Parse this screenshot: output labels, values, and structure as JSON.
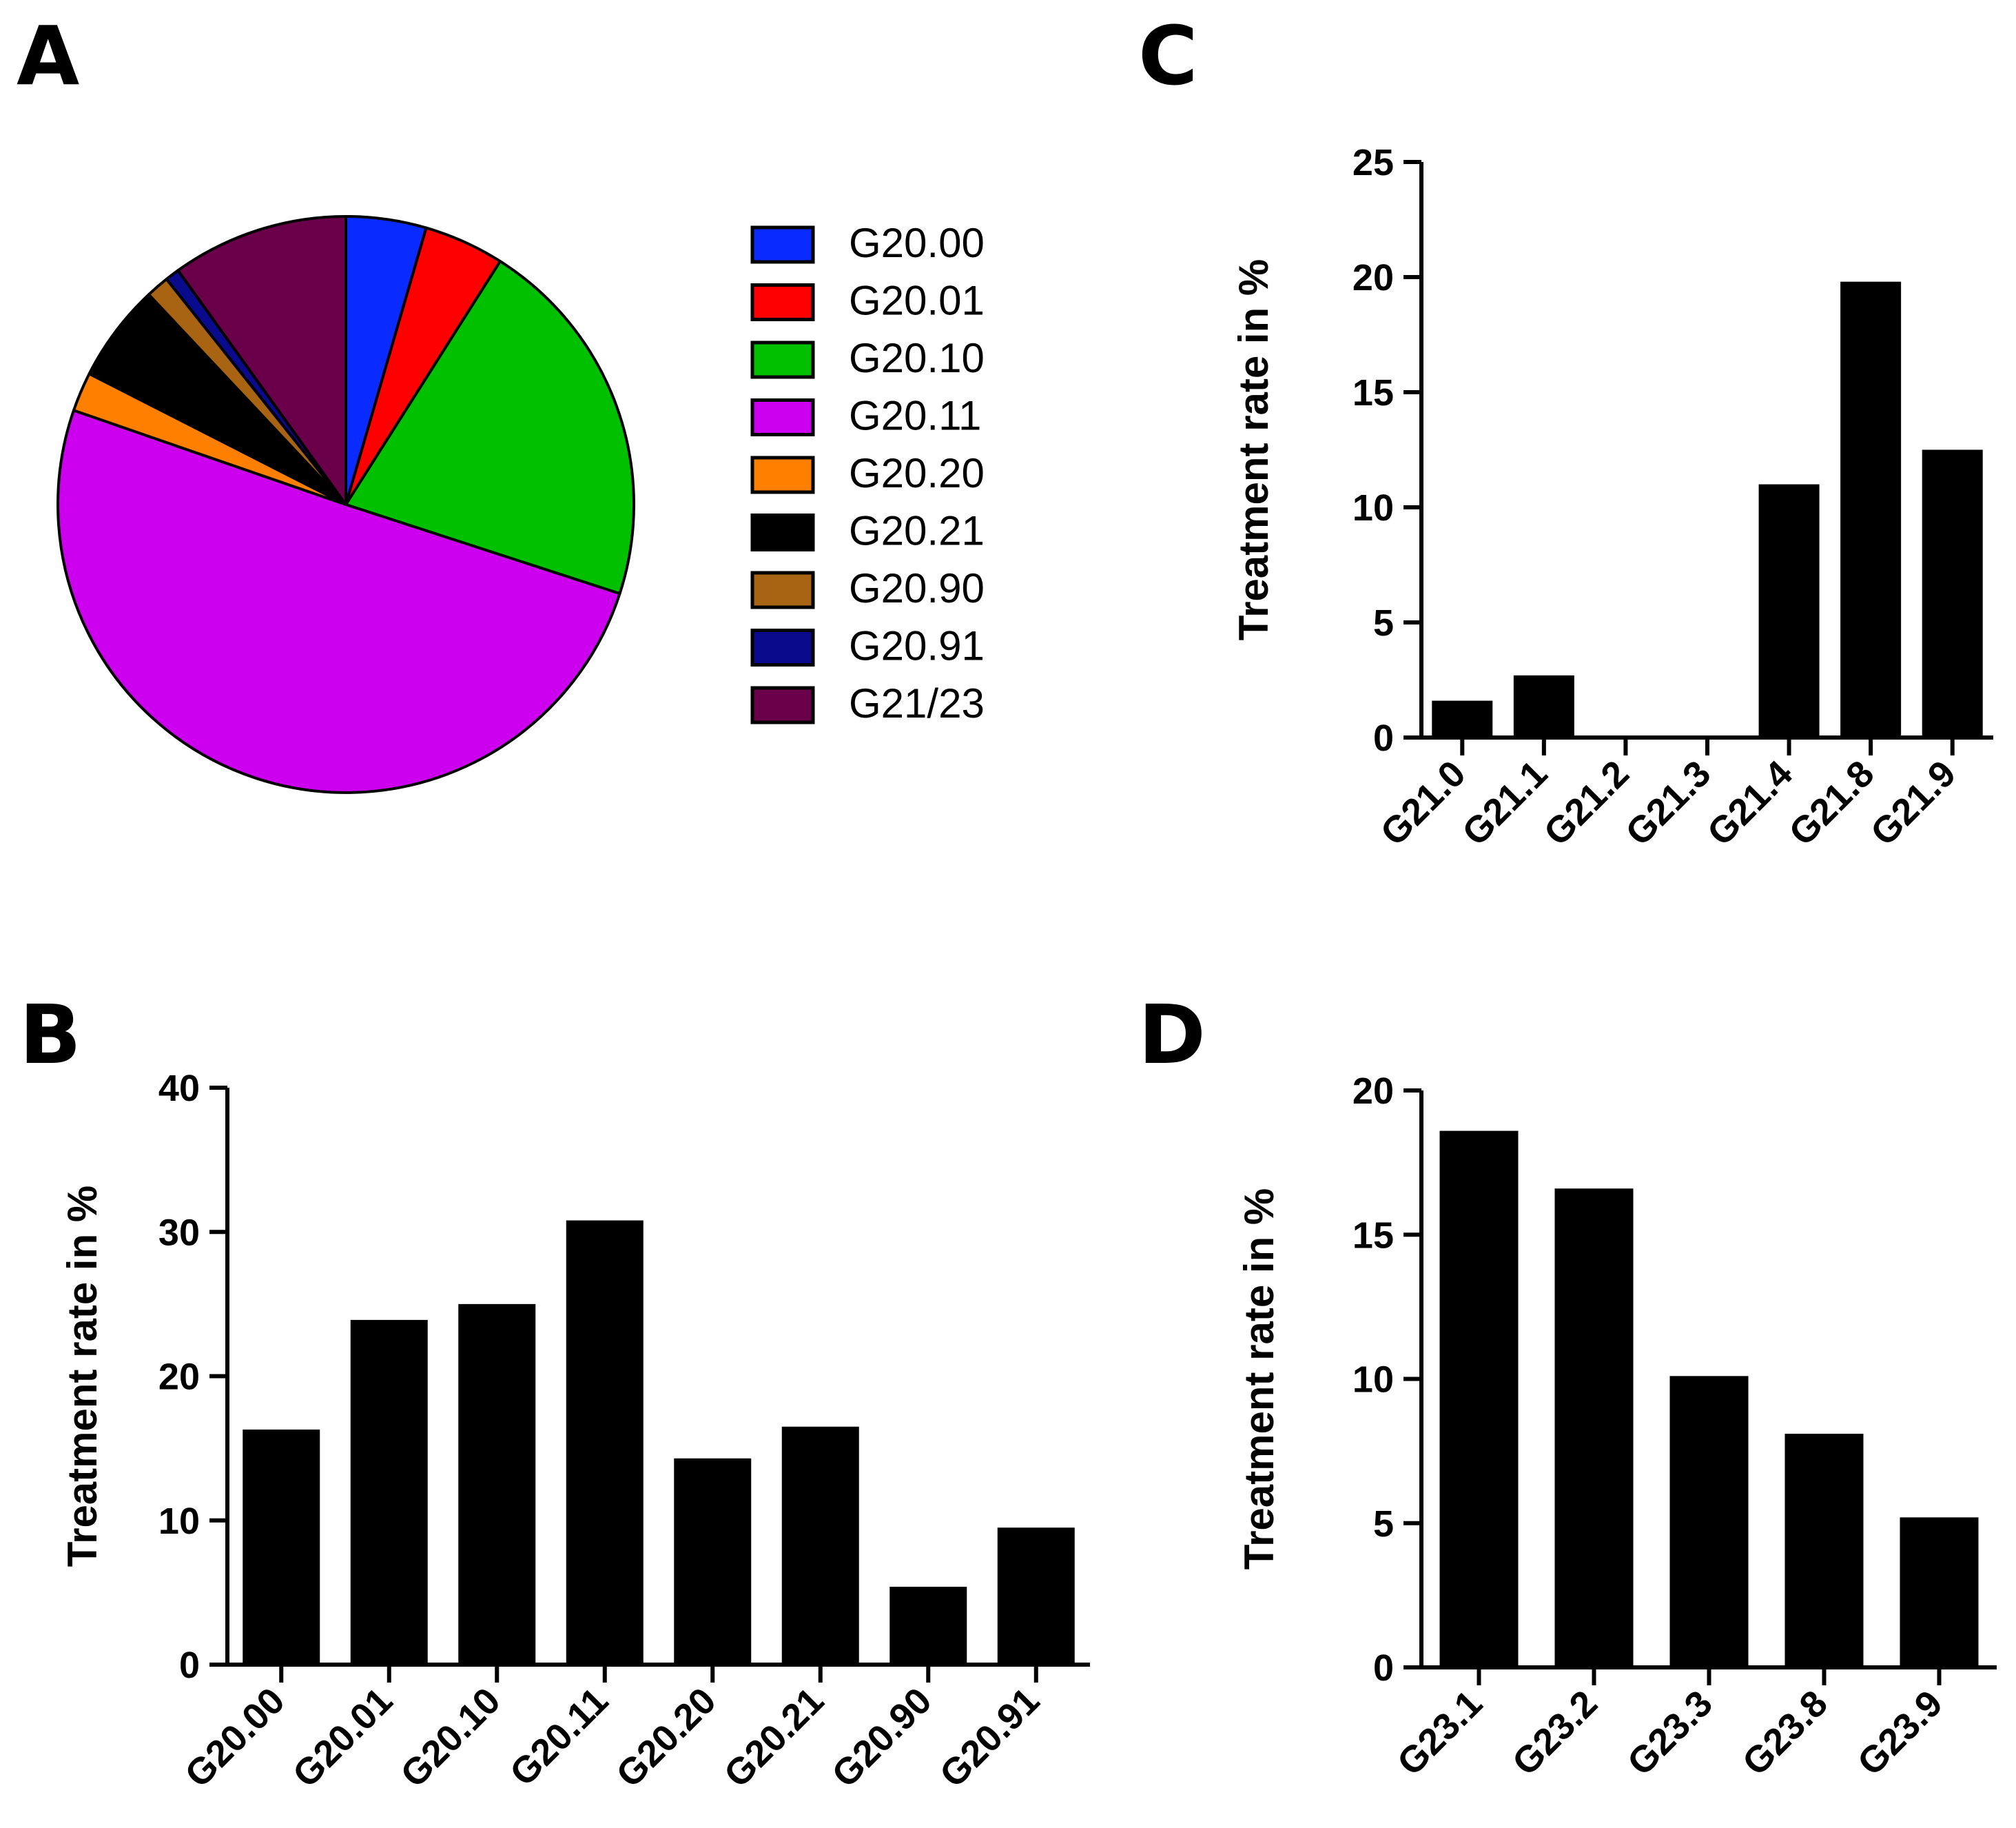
{
  "chart_data": [
    {
      "panel": "A",
      "type": "pie",
      "categories": [
        "G20.00",
        "G20.01",
        "G20.10",
        "G20.11",
        "G20.20",
        "G20.21",
        "G20.90",
        "G20.91",
        "G21/23"
      ],
      "values": [
        4.5,
        4.5,
        21.0,
        50.3,
        2.2,
        5.5,
        1.3,
        0.8,
        9.9
      ],
      "colors": [
        "#0a2bff",
        "#ff0000",
        "#00c000",
        "#cc00ee",
        "#ff8000",
        "#000000",
        "#a86412",
        "#0a0a8c",
        "#6a004a"
      ],
      "legend_position": "right"
    },
    {
      "panel": "B",
      "type": "bar",
      "categories": [
        "G20.00",
        "G20.01",
        "G20.10",
        "G20.11",
        "G20.20",
        "G20.21",
        "G20.90",
        "G20.91"
      ],
      "values": [
        16.3,
        23.9,
        25.0,
        30.8,
        14.3,
        16.5,
        5.4,
        9.5
      ],
      "ylabel": "Treatment rate in %",
      "xlabel": "",
      "ylim": [
        0,
        40
      ],
      "yticks": [
        0,
        10,
        20,
        30,
        40
      ],
      "bar_color": "#000000"
    },
    {
      "panel": "C",
      "type": "bar",
      "categories": [
        "G21.0",
        "G21.1",
        "G21.2",
        "G21.3",
        "G21.4",
        "G21.8",
        "G21.9"
      ],
      "values": [
        1.6,
        2.7,
        0,
        0,
        11.0,
        19.8,
        12.5
      ],
      "ylabel": "Treatment rate in %",
      "xlabel": "",
      "ylim": [
        0,
        25
      ],
      "yticks": [
        0,
        5,
        10,
        15,
        20,
        25
      ],
      "bar_color": "#000000"
    },
    {
      "panel": "D",
      "type": "bar",
      "categories": [
        "G23.1",
        "G23.2",
        "G23.3",
        "G23.8",
        "G23.9"
      ],
      "values": [
        18.6,
        16.6,
        10.1,
        8.1,
        5.2
      ],
      "ylabel": "Treatment rate in %",
      "xlabel": "",
      "ylim": [
        0,
        20
      ],
      "yticks": [
        0,
        5,
        10,
        15,
        20
      ],
      "bar_color": "#000000"
    }
  ]
}
